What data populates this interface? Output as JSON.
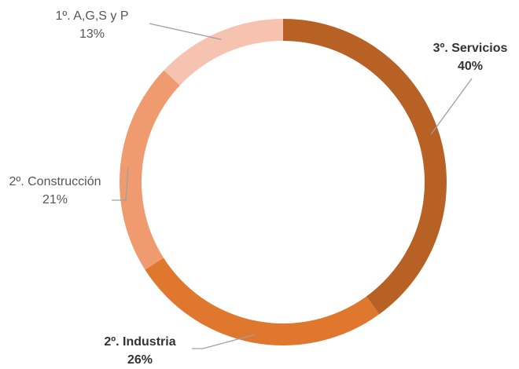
{
  "chart_data": {
    "type": "donut",
    "categories": [
      "3º. Servicios",
      "2º. Industria",
      "2º. Construcción",
      "1º. A,G,S y P"
    ],
    "values": [
      40,
      26,
      21,
      13
    ],
    "value_labels": [
      "40%",
      "26%",
      "21%",
      "13%"
    ],
    "colors": [
      "#b86125",
      "#e0772e",
      "#f09a70",
      "#f6c3b0"
    ]
  }
}
